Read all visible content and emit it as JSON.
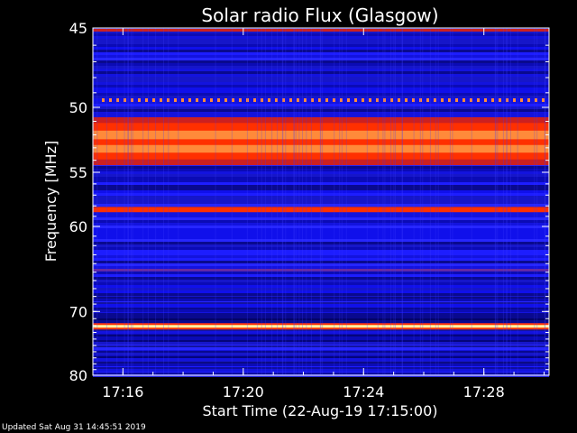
{
  "chart_data": {
    "type": "heatmap",
    "title": "Solar radio Flux (Glasgow)",
    "xlabel": "Start Time (22-Aug-19 17:15:00)",
    "ylabel": "Frequency [MHz]",
    "x_range": [
      "17:15:00",
      "17:30:10"
    ],
    "y_range_mhz": [
      45,
      80
    ],
    "x_ticks": [
      "17:16",
      "17:20",
      "17:24",
      "17:28"
    ],
    "y_ticks": [
      {
        "label": "45",
        "value": 45
      },
      {
        "label": "50",
        "value": 50
      },
      {
        "label": "55",
        "value": 55
      },
      {
        "label": "60",
        "value": 60
      },
      {
        "label": "70",
        "value": 70
      },
      {
        "label": "80",
        "value": 80
      }
    ],
    "colormap": [
      "#000040",
      "#1010ff",
      "#4040ff",
      "#6a2aa0",
      "#cc2020",
      "#ff3000",
      "#ff8a3a",
      "#fff0a0"
    ],
    "emission_bands": [
      {
        "freq_mhz": [
          50.7,
          54.4
        ],
        "level": "high"
      },
      {
        "freq_mhz": [
          58.1,
          58.6
        ],
        "level": "high"
      },
      {
        "freq_mhz": [
          71.9,
          72.3
        ],
        "level": "very high"
      },
      {
        "freq_mhz": [
          64.6,
          64.9
        ],
        "level": "medium"
      }
    ]
  },
  "footer": "Updated Sat Aug 31 14:45:51 2019"
}
